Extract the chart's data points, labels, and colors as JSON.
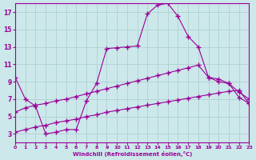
{
  "xlabel": "Windchill (Refroidissement éolien,°C)",
  "bg_color": "#cce8ea",
  "line_color": "#990099",
  "grid_color": "#aacccc",
  "xmin": 0,
  "xmax": 23,
  "ymin": 2,
  "ymax": 18,
  "yticks": [
    3,
    5,
    7,
    9,
    11,
    13,
    15,
    17
  ],
  "xticks": [
    0,
    1,
    2,
    3,
    4,
    5,
    6,
    7,
    8,
    9,
    10,
    11,
    12,
    13,
    14,
    15,
    16,
    17,
    18,
    19,
    20,
    21,
    22,
    23
  ],
  "line1_x": [
    0,
    1,
    2,
    3,
    4,
    5,
    6,
    7,
    8,
    9,
    10,
    11,
    12,
    13,
    14,
    15,
    16,
    17,
    18,
    19,
    20,
    21,
    22,
    23
  ],
  "line1_y": [
    9.5,
    7.0,
    6.2,
    3.0,
    3.2,
    3.5,
    3.5,
    6.8,
    8.8,
    12.8,
    12.9,
    13.0,
    13.1,
    16.8,
    17.8,
    18.0,
    16.5,
    14.2,
    13.0,
    9.5,
    9.0,
    8.8,
    7.2,
    6.5
  ],
  "line2_x": [
    0,
    1,
    2,
    3,
    4,
    5,
    6,
    7,
    8,
    9,
    10,
    11,
    12,
    13,
    14,
    15,
    16,
    17,
    18,
    19,
    20,
    21,
    22,
    23
  ],
  "line2_y": [
    5.5,
    6.0,
    6.3,
    6.5,
    6.8,
    7.0,
    7.3,
    7.6,
    7.9,
    8.2,
    8.5,
    8.8,
    9.1,
    9.4,
    9.7,
    10.0,
    10.3,
    10.6,
    10.9,
    9.5,
    9.3,
    8.8,
    7.8,
    7.0
  ],
  "line3_x": [
    0,
    1,
    2,
    3,
    4,
    5,
    6,
    7,
    8,
    9,
    10,
    11,
    12,
    13,
    14,
    15,
    16,
    17,
    18,
    19,
    20,
    21,
    22,
    23
  ],
  "line3_y": [
    3.2,
    3.5,
    3.8,
    4.0,
    4.3,
    4.5,
    4.7,
    5.0,
    5.2,
    5.5,
    5.7,
    5.9,
    6.1,
    6.3,
    6.5,
    6.7,
    6.9,
    7.1,
    7.3,
    7.5,
    7.7,
    7.9,
    8.0,
    6.5
  ]
}
